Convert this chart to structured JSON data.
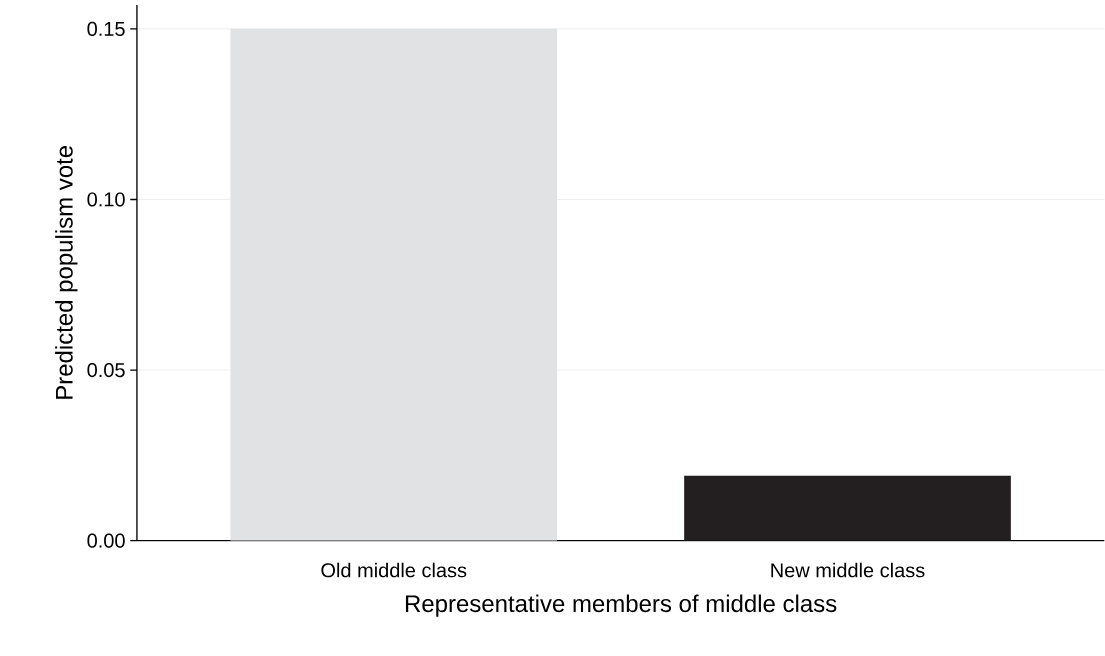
{
  "chart_data": {
    "type": "bar",
    "xlabel": "Representative members of middle class",
    "ylabel": "Predicted populism vote",
    "categories": [
      "Old middle class",
      "New middle class"
    ],
    "values": [
      0.15,
      0.019
    ],
    "colors": [
      "#e1e2e3",
      "#231f20"
    ],
    "ylim": [
      0,
      0.157
    ],
    "yticks": [
      {
        "value": 0,
        "label": "0.00"
      },
      {
        "value": 0.05,
        "label": "0.05"
      },
      {
        "value": 0.1,
        "label": "0.10"
      },
      {
        "value": 0.15,
        "label": "0.15"
      }
    ],
    "grid": "y"
  }
}
